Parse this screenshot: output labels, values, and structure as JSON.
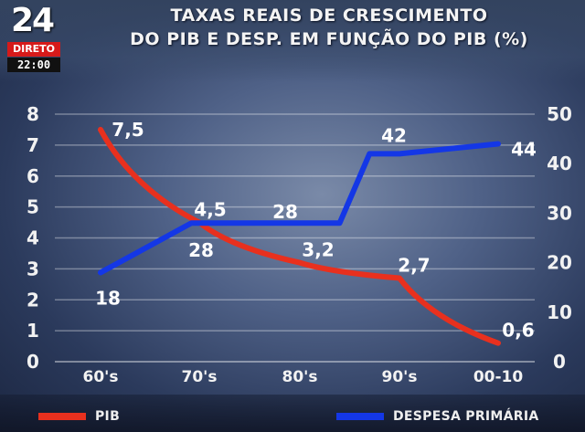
{
  "channel": {
    "number": "24",
    "live_label": "DIRETO",
    "time": "22:00"
  },
  "title_line1": "TAXAS REAIS DE CRESCIMENTO",
  "title_line2": "DO PIB E DESP. EM FUNÇÃO DO PIB (%)",
  "colors": {
    "pib": "#e8301e",
    "despesa": "#1437e6",
    "grid": "#ffffff"
  },
  "chart_data": {
    "type": "line",
    "categories": [
      "60's",
      "70's",
      "80's",
      "90's",
      "00-10"
    ],
    "y_left": {
      "ticks": [
        0,
        1,
        2,
        3,
        4,
        5,
        6,
        7,
        8
      ],
      "lim": [
        0,
        8
      ]
    },
    "y_right": {
      "ticks": [
        0,
        10,
        20,
        30,
        40,
        50
      ],
      "lim": [
        0,
        50
      ]
    },
    "grid": true,
    "legend_position": "bottom",
    "series": [
      {
        "name": "PIB",
        "axis": "left",
        "values": [
          7.5,
          4.5,
          3.2,
          2.7,
          0.6
        ],
        "labels": [
          "7,5",
          "4,5",
          "3,2",
          "2,7",
          "0,6"
        ]
      },
      {
        "name": "DESPESA PRIMÁRIA",
        "axis": "right",
        "values": [
          18,
          28,
          28,
          42,
          44
        ],
        "labels": [
          "18",
          "28",
          "28",
          "42",
          "44"
        ]
      }
    ]
  }
}
